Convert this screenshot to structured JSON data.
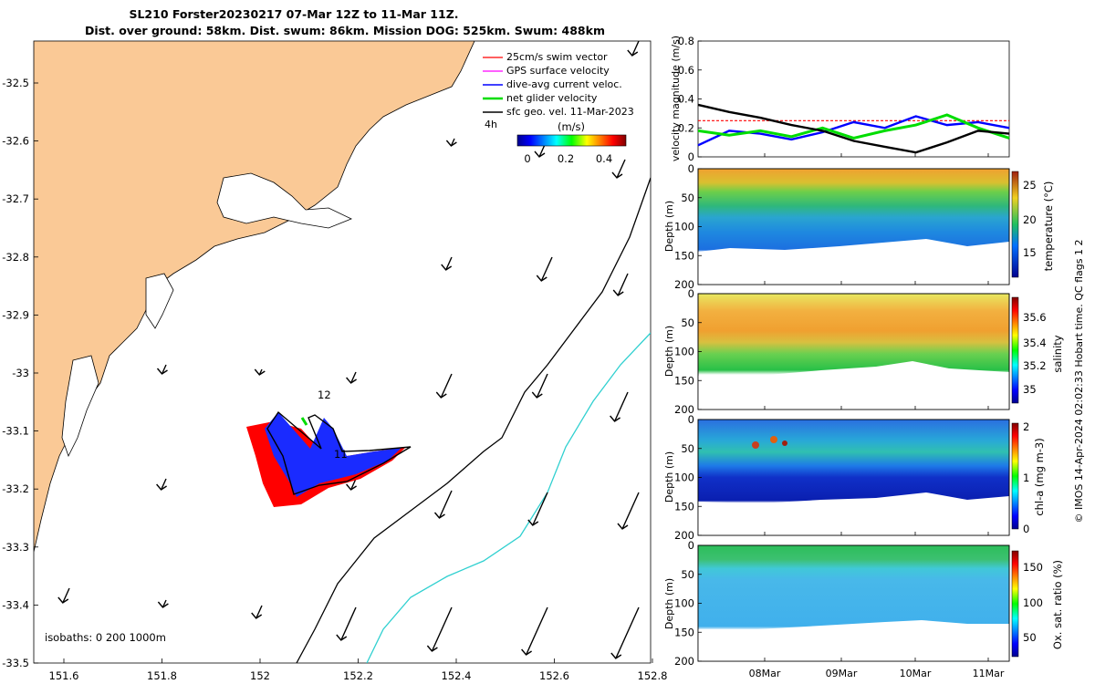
{
  "title": {
    "line1": "SL210 Forster20230217 07-Mar 12Z to 11-Mar 11Z.",
    "line2": "Dist. over ground: 58km. Dist. swum: 86km. Mission DOG: 525km. Swum: 488km"
  },
  "map": {
    "lon_ticks": [
      "151.6",
      "151.8",
      "152",
      "152.2",
      "152.4",
      "152.6",
      "152.8"
    ],
    "lat_ticks": [
      "-32.5",
      "-32.6",
      "-32.7",
      "-32.8",
      "-32.9",
      "-33",
      "-33.1",
      "-33.2",
      "-33.3",
      "-33.4",
      "-33.5"
    ],
    "legend": {
      "items": [
        {
          "label": "25cm/s swim vector",
          "color": "#ff0000"
        },
        {
          "label": "GPS surface velocity",
          "color": "#ff00ff"
        },
        {
          "label": "dive-avg current veloc.",
          "color": "#0000ff"
        },
        {
          "label": "net glider velocity",
          "color": "#00dd00"
        },
        {
          "label": "sfc geo. vel. 11-Mar-2023",
          "color": "#000000"
        }
      ],
      "time_step": "4h"
    },
    "colorbar": {
      "unit": "(m/s)",
      "ticks": [
        "0",
        "0.2",
        "0.4"
      ]
    },
    "track_labels": [
      "12",
      "11"
    ],
    "isobaths_note": "isobaths: 0   200  1000m",
    "land_color": "#fac996"
  },
  "chart_data": [
    {
      "type": "line",
      "ylabel": "velocity magnitude (m/s)",
      "ylim": [
        0,
        0.8
      ],
      "y_ticks": [
        "0",
        "0.2",
        "0.4",
        "0.6",
        "0.8"
      ],
      "x": [
        0,
        0.1,
        0.2,
        0.3,
        0.4,
        0.5,
        0.6,
        0.7,
        0.8,
        0.9,
        1.0
      ],
      "series": [
        {
          "color": "#ff0000",
          "values": [
            0.25,
            0.25,
            0.25,
            0.25,
            0.25,
            0.25,
            0.25,
            0.25,
            0.25,
            0.25,
            0.25
          ]
        },
        {
          "color": "#0000ff",
          "values": [
            0.08,
            0.18,
            0.16,
            0.12,
            0.17,
            0.24,
            0.2,
            0.28,
            0.22,
            0.24,
            0.2
          ]
        },
        {
          "color": "#00dd00",
          "values": [
            0.18,
            0.15,
            0.18,
            0.14,
            0.2,
            0.13,
            0.18,
            0.22,
            0.29,
            0.2,
            0.13
          ]
        },
        {
          "color": "#000000",
          "values": [
            0.36,
            0.31,
            0.27,
            0.22,
            0.18,
            0.11,
            0.07,
            0.03,
            0.1,
            0.18,
            0.16
          ]
        }
      ]
    },
    {
      "type": "heatmap",
      "ylabel": "Depth (m)",
      "y_ticks": [
        "0",
        "50",
        "100",
        "150",
        "200"
      ],
      "colorbar_label": "temperature (°C)",
      "colorbar_ticks": [
        "25",
        "20",
        "15"
      ]
    },
    {
      "type": "heatmap",
      "ylabel": "Depth (m)",
      "y_ticks": [
        "0",
        "50",
        "100",
        "150",
        "200"
      ],
      "colorbar_label": "salinity",
      "colorbar_ticks": [
        "35.6",
        "35.4",
        "35.2",
        "35"
      ]
    },
    {
      "type": "heatmap",
      "ylabel": "Depth (m)",
      "y_ticks": [
        "0",
        "50",
        "100",
        "150",
        "200"
      ],
      "colorbar_label": "chl-a (mg m-3)",
      "colorbar_ticks": [
        "2",
        "1",
        "0"
      ]
    },
    {
      "type": "heatmap",
      "ylabel": "Depth (m)",
      "y_ticks": [
        "0",
        "50",
        "100",
        "150",
        "200"
      ],
      "colorbar_label": "Ox. sat. ratio (%)",
      "colorbar_ticks": [
        "150",
        "100",
        "50"
      ]
    }
  ],
  "time_ticks": [
    "08Mar",
    "09Mar",
    "10Mar",
    "11Mar"
  ],
  "credit": "© IMOS 14-Apr-2024 02:02:33 Hobart time. QC flags 1  2"
}
